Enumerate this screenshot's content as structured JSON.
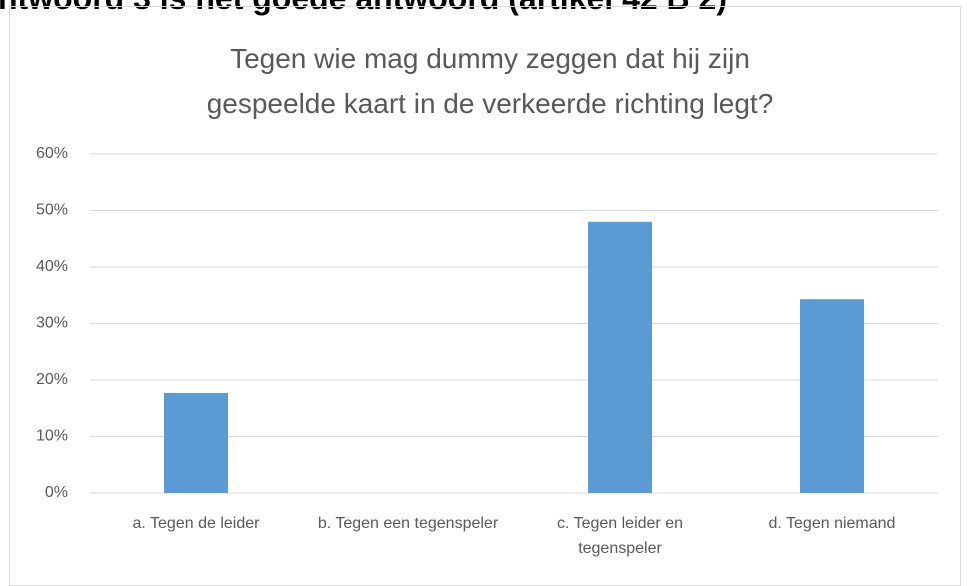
{
  "header": "ntwoord 3 is het goede antwoord (artikel 42 B 2)",
  "chart_data": {
    "type": "bar",
    "title": "Tegen wie mag dummy zeggen dat hij zijn gespeelde kaart in de verkeerde richting legt?",
    "categories": [
      "a. Tegen de leider",
      "b. Tegen een tegenspeler",
      "c. Tegen leider en tegenspeler",
      "d. Tegen niemand"
    ],
    "values": [
      17.7,
      0,
      48,
      34.3
    ],
    "color": "#5b9bd5",
    "ylim": [
      0,
      60
    ],
    "yticks": [
      {
        "value": 0,
        "label": "0%"
      },
      {
        "value": 10,
        "label": "10%"
      },
      {
        "value": 20,
        "label": "20%"
      },
      {
        "value": 30,
        "label": "30%"
      },
      {
        "value": 40,
        "label": "40%"
      },
      {
        "value": 50,
        "label": "50%"
      },
      {
        "value": 60,
        "label": "60%"
      }
    ],
    "grid": true
  }
}
